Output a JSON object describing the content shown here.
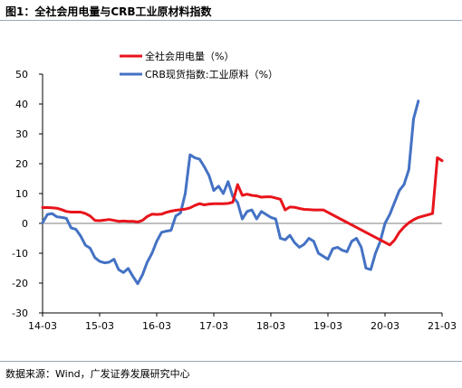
{
  "header": {
    "title": "图1：全社会用电量与CRB工业原材料指数"
  },
  "footer": {
    "source": "数据来源：Wind，广发证券发展研究中心"
  },
  "chart_data": {
    "type": "line",
    "title": "",
    "xlabel": "",
    "ylabel": "",
    "ylim": [
      -30,
      50
    ],
    "yticks": [
      -30,
      -20,
      -10,
      0,
      10,
      20,
      30,
      40,
      50
    ],
    "xticks": [
      "14-03",
      "15-03",
      "16-03",
      "17-03",
      "18-03",
      "19-03",
      "20-03",
      "21-03"
    ],
    "grid": false,
    "legend_position": "top",
    "x_start": "2014-03",
    "series": [
      {
        "name": "全社会用电量（%）",
        "color": "#e8141b",
        "values": [
          5.3,
          5.3,
          5.2,
          5.1,
          4.6,
          4.0,
          3.8,
          3.8,
          3.8,
          3.3,
          2.5,
          1.0,
          0.9,
          1.1,
          1.3,
          1.0,
          0.7,
          0.8,
          0.7,
          0.7,
          0.5,
          1.0,
          2.3,
          3.1,
          3.0,
          3.1,
          3.7,
          4.1,
          4.4,
          4.6,
          4.8,
          5.2,
          6.0,
          6.6,
          6.2,
          6.5,
          6.6,
          6.6,
          6.6,
          6.7,
          7.1,
          13.0,
          9.4,
          9.8,
          9.4,
          9.2,
          8.8,
          8.9,
          8.9,
          8.5,
          8.1,
          4.5,
          5.5,
          5.4,
          5.0,
          4.7,
          4.6,
          4.5,
          4.5,
          4.5,
          -7.2,
          -5.6,
          -3.0,
          -1.2,
          0.2,
          1.2,
          2.0,
          3.3,
          22.0,
          21.0
        ],
        "x_offsets_months": [
          0,
          1,
          2,
          3,
          4,
          5,
          6,
          7,
          8,
          9,
          10,
          11,
          12,
          13,
          14,
          15,
          16,
          17,
          18,
          19,
          20,
          21,
          22,
          23,
          24,
          25,
          26,
          27,
          28,
          29,
          30,
          31,
          32,
          33,
          34,
          35,
          36,
          37,
          38,
          39,
          40,
          41,
          42,
          43,
          44,
          45,
          46,
          47,
          48,
          49,
          50,
          51,
          52,
          53,
          54,
          55,
          56,
          57,
          58,
          59,
          73,
          74,
          75,
          76,
          77,
          78,
          79,
          82,
          83,
          84
        ]
      },
      {
        "name": "CRB现货指数:工业原料（%）",
        "color": "#4472c4",
        "values": [
          0.2,
          3.0,
          3.3,
          2.2,
          2.0,
          1.7,
          -1.5,
          -2.0,
          -4.2,
          -7.3,
          -8.3,
          -11.5,
          -12.7,
          -13.2,
          -13.0,
          -12.0,
          -15.5,
          -16.5,
          -15.1,
          -17.8,
          -20.2,
          -17.2,
          -13.0,
          -10.0,
          -6.0,
          -3.0,
          -2.6,
          -2.3,
          2.5,
          3.5,
          10.0,
          23.0,
          22.0,
          21.5,
          19.0,
          16.0,
          11.0,
          12.5,
          10.0,
          14.0,
          9.0,
          7.0,
          1.5,
          4.0,
          4.5,
          1.5,
          4.0,
          3.0,
          2.0,
          1.5,
          -5.0,
          -5.5,
          -4.0,
          -6.5,
          -8.0,
          -7.0,
          -5.0,
          -6.0,
          -10.0,
          -11.0,
          -12.0,
          -8.5,
          -8.0,
          -9.0,
          -9.5,
          -6.0,
          -5.0,
          -8.0,
          -15.0,
          -15.5,
          -10.0,
          -6.0,
          0.0,
          3.0,
          7.0,
          11.0,
          13.0,
          18.0,
          35.0,
          41.0
        ],
        "x_offsets_months": [
          0,
          1,
          2,
          3,
          4,
          5,
          6,
          7,
          8,
          9,
          10,
          11,
          12,
          13,
          14,
          15,
          16,
          17,
          18,
          19,
          20,
          21,
          22,
          23,
          24,
          25,
          26,
          27,
          28,
          29,
          30,
          31,
          32,
          33,
          34,
          35,
          36,
          37,
          38,
          39,
          40,
          41,
          42,
          43,
          44,
          45,
          46,
          47,
          48,
          49,
          50,
          51,
          52,
          53,
          54,
          55,
          56,
          57,
          58,
          59,
          60,
          61,
          62,
          63,
          64,
          65,
          66,
          67,
          68,
          69,
          70,
          71,
          72,
          73,
          74,
          75,
          76,
          77,
          78,
          79
        ]
      }
    ]
  }
}
